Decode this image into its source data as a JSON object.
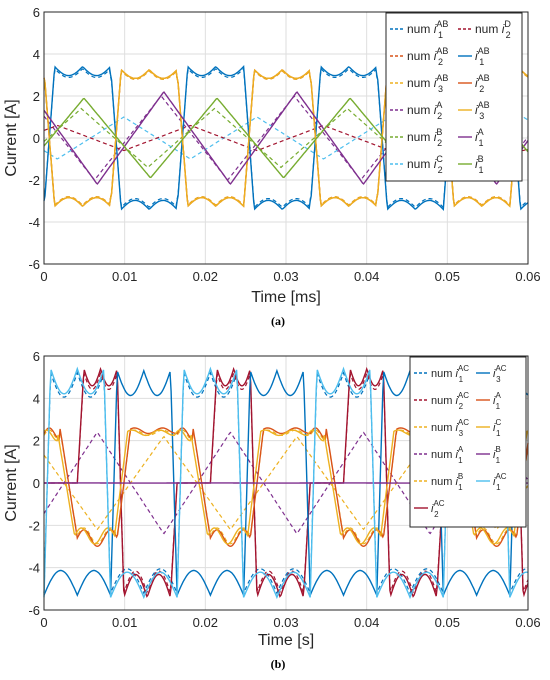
{
  "chart_data": [
    {
      "panel": "(a)",
      "type": "line",
      "caption": "(a)",
      "xlabel": "Time  [ms]",
      "ylabel": "Current [A]",
      "xlim": [
        0,
        0.06
      ],
      "ylim": [
        -6,
        6
      ],
      "x_ticks": [
        "0",
        "0.01",
        "0.02",
        "0.03",
        "0.04",
        "0.05",
        "0.06"
      ],
      "y_ticks": [
        "-6",
        "-4",
        "-2",
        "0",
        "2",
        "4",
        "6"
      ],
      "grid": true,
      "legend_position": "top-right",
      "period": 0.0165,
      "series": [
        {
          "legend": [
            "num ",
            "i",
            "1",
            "AB"
          ],
          "style": "dashed",
          "color": "#0072BD",
          "shape": "square",
          "amplitude": 3.3,
          "phase": 0
        },
        {
          "legend": [
            "num ",
            "i",
            "2",
            "AB"
          ],
          "style": "dashed",
          "color": "#D95319",
          "shape": "square",
          "amplitude": 3.2,
          "phase": 0.5
        },
        {
          "legend": [
            "num ",
            "i",
            "3",
            "AB"
          ],
          "style": "dashed",
          "color": "#EDB120",
          "shape": "square",
          "amplitude": 3.2,
          "phase": 0.5
        },
        {
          "legend": [
            "num ",
            "i",
            "2",
            "A"
          ],
          "style": "dashed",
          "color": "#7E2F8E",
          "shape": "tri",
          "amplitude": 2.0,
          "phase": 0.62
        },
        {
          "legend": [
            "num ",
            "i",
            "2",
            "B"
          ],
          "style": "dashed",
          "color": "#77AC30",
          "shape": "tri",
          "amplitude": 1.4,
          "phase": 0.22
        },
        {
          "legend": [
            "num ",
            "i",
            "2",
            "C"
          ],
          "style": "dashed",
          "color": "#4DBEEE",
          "shape": "tri",
          "amplitude": 1.0,
          "phase": 0.9
        },
        {
          "legend": [
            "num ",
            "i",
            "2",
            "D"
          ],
          "style": "dashed",
          "color": "#A2142F",
          "shape": "tri",
          "amplitude": 0.6,
          "phase": 0.4
        },
        {
          "legend": [
            "",
            "i",
            "1",
            "AB"
          ],
          "style": "solid",
          "color": "#0072BD",
          "shape": "square",
          "amplitude": 3.4,
          "phase": 0
        },
        {
          "legend": [
            "",
            "i",
            "2",
            "AB"
          ],
          "style": "solid",
          "color": "#D95319",
          "shape": "square",
          "amplitude": 3.25,
          "phase": 0.5
        },
        {
          "legend": [
            "",
            "i",
            "3",
            "AB"
          ],
          "style": "solid",
          "color": "#EDB120",
          "shape": "square",
          "amplitude": 3.25,
          "phase": 0.5
        },
        {
          "legend": [
            "",
            "i",
            "1",
            "A"
          ],
          "style": "solid",
          "color": "#7E2F8E",
          "shape": "tri",
          "amplitude": 2.2,
          "phase": 0.6
        },
        {
          "legend": [
            "",
            "i",
            "1",
            "B"
          ],
          "style": "solid",
          "color": "#77AC30",
          "shape": "tri",
          "amplitude": 1.9,
          "phase": 0.2
        }
      ]
    },
    {
      "panel": "(b)",
      "type": "line",
      "caption": "(b)",
      "xlabel": "Time  [s]",
      "ylabel": "Current [A]",
      "xlim": [
        0,
        0.06
      ],
      "ylim": [
        -6,
        6
      ],
      "x_ticks": [
        "0",
        "0.01",
        "0.02",
        "0.03",
        "0.04",
        "0.05",
        "0.06"
      ],
      "y_ticks": [
        "-6",
        "-4",
        "-2",
        "0",
        "2",
        "4",
        "6"
      ],
      "grid": true,
      "legend_position": "top-right",
      "period": 0.0165,
      "series": [
        {
          "legend": [
            "num ",
            "i",
            "1",
            "AC"
          ],
          "style": "dashed",
          "color": "#0072BD",
          "shape": "pulseA",
          "amplitude": 5.2,
          "phase": 0
        },
        {
          "legend": [
            "num ",
            "i",
            "2",
            "AC"
          ],
          "style": "dashed",
          "color": "#A2142F",
          "shape": "pulseB",
          "amplitude": 5.2,
          "phase": 0
        },
        {
          "legend": [
            "num ",
            "i",
            "3",
            "AC"
          ],
          "style": "dashed",
          "color": "#EDB120",
          "shape": "pulseC",
          "amplitude": 2.5,
          "phase": 0
        },
        {
          "legend": [
            "num ",
            "i",
            "1",
            "A"
          ],
          "style": "dashed",
          "color": "#7E2F8E",
          "shape": "tri",
          "amplitude": 2.4,
          "phase": 0.1
        },
        {
          "legend": [
            "num ",
            "i",
            "1",
            "B"
          ],
          "style": "dashed",
          "color": "#EDB120",
          "shape": "tri",
          "amplitude": 2.2,
          "phase": 0.6
        },
        {
          "legend": [
            "",
            "i",
            "2",
            "AC"
          ],
          "style": "solid",
          "color": "#A2142F",
          "shape": "pulseB",
          "amplitude": 5.4,
          "phase": 0
        },
        {
          "legend": [
            "",
            "i",
            "3",
            "AC"
          ],
          "style": "solid",
          "color": "#0072BD",
          "shape": "pulseA2",
          "amplitude": 5.3,
          "phase": 0
        },
        {
          "legend": [
            "",
            "i",
            "1",
            "A"
          ],
          "style": "solid",
          "color": "#D95319",
          "shape": "pulseC",
          "amplitude": 2.6,
          "phase": 0
        },
        {
          "legend": [
            "",
            "i",
            "1",
            "C"
          ],
          "style": "solid",
          "color": "#EDB120",
          "shape": "pulseC",
          "amplitude": 2.5,
          "phase": 0.02
        },
        {
          "legend": [
            "",
            "i",
            "1",
            "B"
          ],
          "style": "solid",
          "color": "#7E2F8E",
          "shape": "flat",
          "amplitude": 0.1,
          "phase": 0
        },
        {
          "legend": [
            "",
            "i",
            "1",
            "AC"
          ],
          "style": "solid",
          "color": "#4DBEEE",
          "shape": "pulseA",
          "amplitude": 5.4,
          "phase": 0
        }
      ]
    }
  ]
}
